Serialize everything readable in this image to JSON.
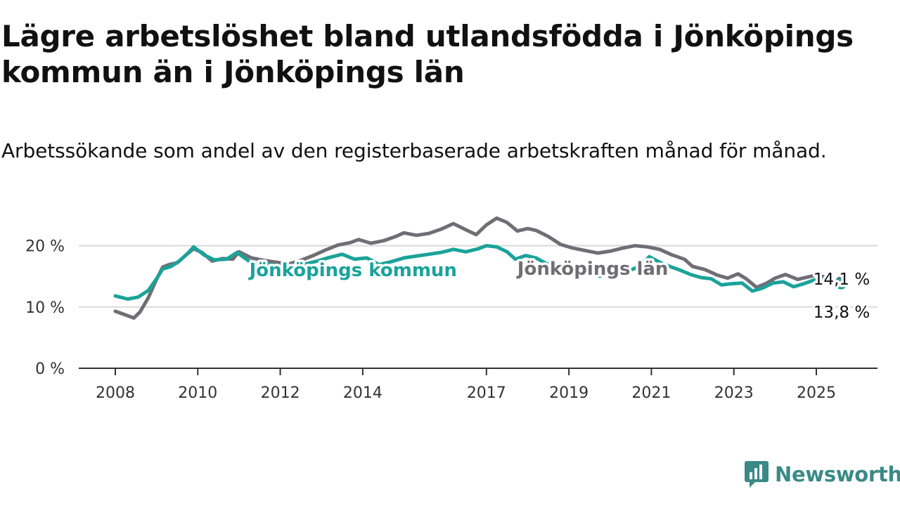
{
  "title": "Lägre arbetslöshet bland utlandsfödda i Jönköpings kommun än i Jönköpings län",
  "subtitle": "Arbetssökande som andel av den registerbaserade arbetskraften månad för månad.",
  "brand": {
    "name": "Newsworthy",
    "color": "#3a8a86",
    "icon": "newsworthy-logo-icon"
  },
  "chart_data": {
    "type": "line",
    "title": "Lägre arbetslöshet bland utlandsfödda i Jönköpings kommun än i Jönköpings län",
    "subtitle": "Arbetssökande som andel av den registerbaserade arbetskraften månad för månad.",
    "xlabel": "",
    "ylabel": "",
    "xlim": [
      2007.6,
      2026.5
    ],
    "ylim": [
      0,
      25
    ],
    "x_ticks": [
      2008,
      2010,
      2012,
      2014,
      2017,
      2019,
      2021,
      2023,
      2025
    ],
    "x_tick_labels": [
      "2008",
      "2010",
      "2012",
      "2014",
      "2017",
      "2019",
      "2021",
      "2023",
      "2025"
    ],
    "y_ticks": [
      0,
      10,
      20
    ],
    "y_tick_labels": [
      "0 %",
      "10 %",
      "20 %"
    ],
    "grid": "horizontal",
    "series": [
      {
        "name": "Jönköpings län",
        "color": "#706e75",
        "end_label": "14,1 %",
        "points": [
          [
            2008.0,
            9.3
          ],
          [
            2008.25,
            8.7
          ],
          [
            2008.45,
            8.2
          ],
          [
            2008.6,
            9.2
          ],
          [
            2008.8,
            11.5
          ],
          [
            2009.0,
            14.5
          ],
          [
            2009.15,
            16.5
          ],
          [
            2009.3,
            16.9
          ],
          [
            2009.5,
            17.2
          ],
          [
            2009.7,
            18.4
          ],
          [
            2009.9,
            19.5
          ],
          [
            2010.1,
            18.9
          ],
          [
            2010.35,
            17.5
          ],
          [
            2010.6,
            17.9
          ],
          [
            2010.85,
            17.8
          ],
          [
            2011.0,
            19.0
          ],
          [
            2011.3,
            18.0
          ],
          [
            2011.6,
            17.6
          ],
          [
            2011.9,
            17.3
          ],
          [
            2012.2,
            17.0
          ],
          [
            2012.5,
            17.6
          ],
          [
            2012.8,
            18.4
          ],
          [
            2013.1,
            19.3
          ],
          [
            2013.4,
            20.1
          ],
          [
            2013.7,
            20.5
          ],
          [
            2013.9,
            21.0
          ],
          [
            2014.2,
            20.4
          ],
          [
            2014.5,
            20.8
          ],
          [
            2014.8,
            21.5
          ],
          [
            2015.0,
            22.1
          ],
          [
            2015.3,
            21.7
          ],
          [
            2015.6,
            22.0
          ],
          [
            2015.9,
            22.7
          ],
          [
            2016.2,
            23.6
          ],
          [
            2016.5,
            22.6
          ],
          [
            2016.75,
            21.8
          ],
          [
            2017.0,
            23.4
          ],
          [
            2017.25,
            24.5
          ],
          [
            2017.5,
            23.8
          ],
          [
            2017.75,
            22.4
          ],
          [
            2018.0,
            22.8
          ],
          [
            2018.2,
            22.5
          ],
          [
            2018.5,
            21.5
          ],
          [
            2018.8,
            20.2
          ],
          [
            2019.1,
            19.6
          ],
          [
            2019.4,
            19.2
          ],
          [
            2019.7,
            18.8
          ],
          [
            2020.0,
            19.1
          ],
          [
            2020.3,
            19.6
          ],
          [
            2020.6,
            20.0
          ],
          [
            2020.9,
            19.8
          ],
          [
            2021.2,
            19.4
          ],
          [
            2021.5,
            18.5
          ],
          [
            2021.8,
            17.8
          ],
          [
            2022.0,
            16.6
          ],
          [
            2022.3,
            16.1
          ],
          [
            2022.6,
            15.2
          ],
          [
            2022.85,
            14.7
          ],
          [
            2023.1,
            15.4
          ],
          [
            2023.3,
            14.6
          ],
          [
            2023.55,
            13.2
          ],
          [
            2023.8,
            13.9
          ],
          [
            2024.0,
            14.7
          ],
          [
            2024.25,
            15.3
          ],
          [
            2024.55,
            14.5
          ],
          [
            2024.8,
            14.9
          ],
          [
            2025.0,
            15.2
          ],
          [
            2025.2,
            14.9
          ],
          [
            2025.45,
            14.1
          ],
          [
            2025.6,
            14.1
          ]
        ]
      },
      {
        "name": "Jönköpings kommun",
        "color": "#1aa39a",
        "end_label": "13,8 %",
        "points": [
          [
            2008.0,
            11.8
          ],
          [
            2008.3,
            11.3
          ],
          [
            2008.55,
            11.6
          ],
          [
            2008.8,
            12.7
          ],
          [
            2009.0,
            14.6
          ],
          [
            2009.15,
            16.2
          ],
          [
            2009.35,
            16.6
          ],
          [
            2009.55,
            17.5
          ],
          [
            2009.75,
            18.7
          ],
          [
            2009.9,
            19.8
          ],
          [
            2010.15,
            18.5
          ],
          [
            2010.4,
            17.7
          ],
          [
            2010.7,
            17.8
          ],
          [
            2010.95,
            18.9
          ],
          [
            2011.3,
            17.2
          ],
          [
            2011.6,
            17.0
          ],
          [
            2011.9,
            16.8
          ],
          [
            2012.3,
            16.3
          ],
          [
            2012.6,
            17.0
          ],
          [
            2012.9,
            17.5
          ],
          [
            2013.2,
            18.1
          ],
          [
            2013.5,
            18.6
          ],
          [
            2013.8,
            17.8
          ],
          [
            2014.1,
            18.0
          ],
          [
            2014.4,
            16.9
          ],
          [
            2014.7,
            17.4
          ],
          [
            2015.0,
            18.0
          ],
          [
            2015.3,
            18.3
          ],
          [
            2015.6,
            18.6
          ],
          [
            2015.9,
            18.9
          ],
          [
            2016.2,
            19.4
          ],
          [
            2016.5,
            19.0
          ],
          [
            2016.8,
            19.5
          ],
          [
            2017.0,
            20.0
          ],
          [
            2017.25,
            19.8
          ],
          [
            2017.5,
            19.0
          ],
          [
            2017.7,
            17.8
          ],
          [
            2017.95,
            18.4
          ],
          [
            2018.2,
            18.0
          ],
          [
            2018.45,
            17.1
          ],
          [
            2018.7,
            16.4
          ],
          [
            2018.95,
            16.8
          ],
          [
            2019.25,
            16.0
          ],
          [
            2019.5,
            15.7
          ],
          [
            2019.75,
            15.0
          ],
          [
            2020.0,
            16.2
          ],
          [
            2020.25,
            16.7
          ],
          [
            2020.45,
            15.9
          ],
          [
            2020.7,
            16.6
          ],
          [
            2020.95,
            18.2
          ],
          [
            2021.2,
            17.3
          ],
          [
            2021.45,
            16.6
          ],
          [
            2021.7,
            16.0
          ],
          [
            2021.95,
            15.3
          ],
          [
            2022.2,
            14.8
          ],
          [
            2022.45,
            14.6
          ],
          [
            2022.7,
            13.6
          ],
          [
            2022.95,
            13.8
          ],
          [
            2023.2,
            13.9
          ],
          [
            2023.45,
            12.6
          ],
          [
            2023.7,
            13.1
          ],
          [
            2023.95,
            13.9
          ],
          [
            2024.2,
            14.1
          ],
          [
            2024.45,
            13.3
          ],
          [
            2024.7,
            13.8
          ],
          [
            2024.95,
            14.4
          ],
          [
            2025.2,
            14.4
          ],
          [
            2025.45,
            13.6
          ],
          [
            2025.6,
            13.8
          ]
        ]
      }
    ]
  }
}
